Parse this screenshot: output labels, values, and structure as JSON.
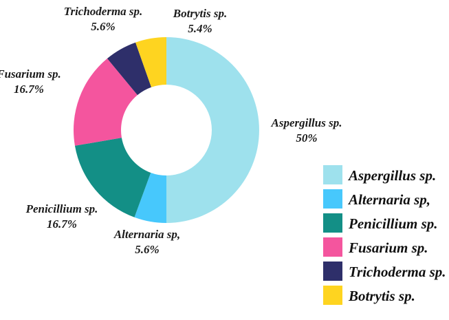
{
  "chart_data": {
    "type": "pie",
    "donut": true,
    "title": "",
    "legend_position": "bottom-right",
    "slices": [
      {
        "label": "Aspergillus sp.",
        "value": 50,
        "value_text": "50%",
        "color": "#9ee1ed"
      },
      {
        "label": "Alternaria sp,",
        "value": 5.6,
        "value_text": "5.6%",
        "color": "#47c8fc"
      },
      {
        "label": "Penicillium sp.",
        "value": 16.7,
        "value_text": "16.7%",
        "color": "#138f86"
      },
      {
        "label": "Fusarium sp.",
        "value": 16.7,
        "value_text": "16.7%",
        "color": "#f4559e"
      },
      {
        "label": "Trichoderma sp.",
        "value": 5.6,
        "value_text": "5.6%",
        "color": "#2e2f6a"
      },
      {
        "label": "Botrytis sp.",
        "value": 5.4,
        "value_text": "5.4%",
        "color": "#fed420"
      }
    ],
    "legend": [
      {
        "label": "Aspergillus sp.",
        "color": "#9ee1ed"
      },
      {
        "label": "Alternaria sp,",
        "color": "#47c8fc"
      },
      {
        "label": "Penicillium sp.",
        "color": "#138f86"
      },
      {
        "label": "Fusarium sp.",
        "color": "#f4559e"
      },
      {
        "label": "Trichoderma sp.",
        "color": "#2e2f6a"
      },
      {
        "label": "Botrytis sp.",
        "color": "#fed420"
      }
    ]
  }
}
